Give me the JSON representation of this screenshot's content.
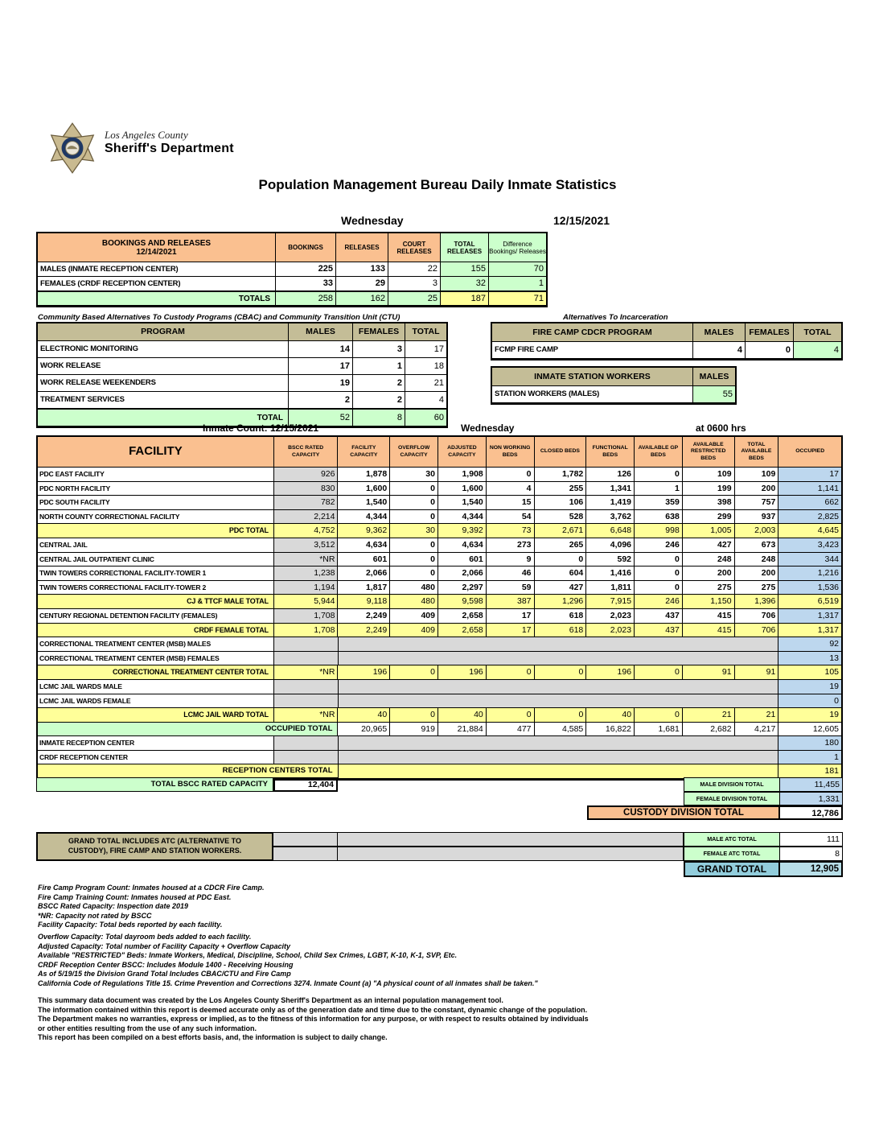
{
  "colors": {
    "peach": "#FAC090",
    "tan": "#C4BD97",
    "green": "#CCFFCC",
    "yellow": "#FFFF99",
    "blue": "#BDD7EE",
    "gray": "#D9D9D9",
    "gblue": "#92CDDC",
    "gbluel": "#B7DEE8",
    "navy": "#1F3864",
    "gold": "#C9BA90"
  },
  "logo": {
    "line1": "Los Angeles County",
    "line2": "Sheriff's Department"
  },
  "page": {
    "title": "Population Management Bureau Daily Inmate Statistics",
    "day": "Wednesday",
    "date": "12/15/2021"
  },
  "bookings": {
    "header": {
      "title1": "BOOKINGS AND RELEASES",
      "title2": "12/14/2021",
      "cols": [
        "BOOKINGS",
        "RELEASES",
        "COURT RELEASES",
        "TOTAL RELEASES",
        "Difference Bookings/ Releases"
      ]
    },
    "rows": [
      {
        "label": "MALES (INMATE RECEPTION CENTER)",
        "values": [
          "225",
          "133",
          "22",
          "155",
          "70"
        ]
      },
      {
        "label": "FEMALES (CRDF RECEPTION CENTER)",
        "values": [
          "33",
          "29",
          "3",
          "32",
          "1"
        ]
      }
    ],
    "totals": {
      "label": "TOTALS",
      "values": [
        "258",
        "162",
        "25",
        "187",
        "71"
      ]
    }
  },
  "cbac": {
    "title": "Community Based Alternatives To Custody Programs (CBAC) and Community Transition Unit (CTU)",
    "cols": [
      "PROGRAM",
      "MALES",
      "FEMALES",
      "TOTAL"
    ],
    "rows": [
      {
        "label": "ELECTRONIC MONITORING",
        "values": [
          "14",
          "3",
          "17"
        ]
      },
      {
        "label": "WORK RELEASE",
        "values": [
          "17",
          "1",
          "18"
        ]
      },
      {
        "label": "WORK RELEASE WEEKENDERS",
        "values": [
          "19",
          "2",
          "21"
        ]
      },
      {
        "label": "TREATMENT SERVICES",
        "values": [
          "2",
          "2",
          "4"
        ]
      }
    ],
    "total": {
      "label": "TOTAL",
      "values": [
        "52",
        "8",
        "60"
      ]
    }
  },
  "ati": {
    "title": "Alternatives To Incarceration",
    "fire_camp": {
      "cols": [
        "FIRE CAMP CDCR PROGRAM",
        "MALES",
        "FEMALES",
        "TOTAL"
      ],
      "row": {
        "label": "FCMP FIRE CAMP",
        "values": [
          "4",
          "0",
          "4"
        ]
      }
    },
    "station_workers": {
      "cols": [
        "INMATE STATION WORKERS",
        "MALES"
      ],
      "row": {
        "label": "STATION WORKERS (MALES)",
        "value": "55"
      }
    }
  },
  "count_table": {
    "caption": {
      "left": "Inmate Count: 12/15/2021",
      "center": "Wednesday",
      "right": "at 0600 hrs"
    },
    "columns": [
      "FACILITY",
      "BSCC RATED CAPACITY",
      "FACILITY CAPACITY",
      "OVERFLOW CAPACITY",
      "ADJUSTED CAPACITY",
      "NON WORKING BEDS",
      "CLOSED BEDS",
      "FUNCTIONAL BEDS",
      "AVAILABLE GP BEDS",
      "AVAILABLE RESTRICTED BEDS",
      "TOTAL AVAILABLE BEDS",
      "OCCUPIED"
    ],
    "rows": [
      {
        "kind": "f",
        "label": "PDC EAST FACILITY",
        "cells": [
          "926",
          "1,878",
          "30",
          "1,908",
          "0",
          "1,782",
          "126",
          "0",
          "109",
          "109",
          "17"
        ]
      },
      {
        "kind": "f",
        "label": "PDC NORTH FACILITY",
        "cells": [
          "830",
          "1,600",
          "0",
          "1,600",
          "4",
          "255",
          "1,341",
          "1",
          "199",
          "200",
          "1,141"
        ]
      },
      {
        "kind": "f",
        "label": "PDC SOUTH FACILITY",
        "cells": [
          "782",
          "1,540",
          "0",
          "1,540",
          "15",
          "106",
          "1,419",
          "359",
          "398",
          "757",
          "662"
        ]
      },
      {
        "kind": "f",
        "label": "NORTH COUNTY CORRECTIONAL FACILITY",
        "cells": [
          "2,214",
          "4,344",
          "0",
          "4,344",
          "54",
          "528",
          "3,762",
          "638",
          "299",
          "937",
          "2,825"
        ]
      },
      {
        "kind": "t",
        "label": "PDC TOTAL",
        "cells": [
          "4,752",
          "9,362",
          "30",
          "9,392",
          "73",
          "2,671",
          "6,648",
          "998",
          "1,005",
          "2,003",
          "4,645"
        ]
      },
      {
        "kind": "f",
        "label": "CENTRAL JAIL",
        "cells": [
          "3,512",
          "4,634",
          "0",
          "4,634",
          "273",
          "265",
          "4,096",
          "246",
          "427",
          "673",
          "3,423"
        ]
      },
      {
        "kind": "f",
        "label": "CENTRAL JAIL OUTPATIENT CLINIC",
        "cells": [
          "*NR",
          "601",
          "0",
          "601",
          "9",
          "0",
          "592",
          "0",
          "248",
          "248",
          "344"
        ]
      },
      {
        "kind": "f",
        "label": "TWIN TOWERS CORRECTIONAL FACILITY-TOWER 1",
        "cells": [
          "1,238",
          "2,066",
          "0",
          "2,066",
          "46",
          "604",
          "1,416",
          "0",
          "200",
          "200",
          "1,216"
        ]
      },
      {
        "kind": "f",
        "label": "TWIN TOWERS CORRECTIONAL FACILITY-TOWER 2",
        "cells": [
          "1,194",
          "1,817",
          "480",
          "2,297",
          "59",
          "427",
          "1,811",
          "0",
          "275",
          "275",
          "1,536"
        ]
      },
      {
        "kind": "t",
        "label": "CJ & TTCF MALE TOTAL",
        "cells": [
          "5,944",
          "9,118",
          "480",
          "9,598",
          "387",
          "1,296",
          "7,915",
          "246",
          "1,150",
          "1,396",
          "6,519"
        ]
      },
      {
        "kind": "f",
        "label": "CENTURY REGIONAL DETENTION FACILITY (FEMALES)",
        "cells": [
          "1,708",
          "2,249",
          "409",
          "2,658",
          "17",
          "618",
          "2,023",
          "437",
          "415",
          "706",
          "1,317"
        ]
      },
      {
        "kind": "t",
        "label": "CRDF FEMALE TOTAL",
        "cells": [
          "1,708",
          "2,249",
          "409",
          "2,658",
          "17",
          "618",
          "2,023",
          "437",
          "415",
          "706",
          "1,317"
        ]
      },
      {
        "kind": "m",
        "label": "CORRECTIONAL TREATMENT CENTER (MSB) MALES",
        "bscc": "",
        "occupied": "92"
      },
      {
        "kind": "m",
        "label": "CORRECTIONAL TREATMENT CENTER (MSB) FEMALES",
        "bscc": "",
        "occupied": "13"
      },
      {
        "kind": "t",
        "label": "CORRECTIONAL TREATMENT CENTER  TOTAL",
        "cells": [
          "*NR",
          "196",
          "0",
          "196",
          "0",
          "0",
          "196",
          "0",
          "91",
          "91",
          "105"
        ]
      },
      {
        "kind": "m",
        "label": "LCMC JAIL WARDS MALE",
        "bscc": "",
        "occupied": "19"
      },
      {
        "kind": "m",
        "label": "LCMC JAIL WARDS FEMALE",
        "bscc": "",
        "occupied": "0"
      },
      {
        "kind": "t",
        "label": "LCMC JAIL WARD TOTAL",
        "cells": [
          "*NR",
          "40",
          "0",
          "40",
          "0",
          "0",
          "40",
          "0",
          "21",
          "21",
          "19"
        ]
      },
      {
        "kind": "g",
        "label": "OCCUPIED TOTAL",
        "cells": [
          "20,965",
          "919",
          "21,884",
          "477",
          "4,585",
          "16,822",
          "1,681",
          "2,682",
          "4,217",
          "12,605"
        ]
      },
      {
        "kind": "m",
        "label": "INMATE RECEPTION CENTER",
        "bscc": "",
        "occupied": "180"
      },
      {
        "kind": "m",
        "label": "CRDF RECEPTION CENTER",
        "bscc": "",
        "occupied": "1"
      },
      {
        "kind": "rt",
        "label": "RECEPTION CENTERS TOTAL",
        "bscc": "",
        "occupied": "181"
      }
    ],
    "bscc_total": {
      "label": "TOTAL BSCC RATED CAPACITY",
      "value": "12,404"
    },
    "division_totals": [
      {
        "label": "MALE DIVISION TOTAL",
        "value": "11,455"
      },
      {
        "label": "FEMALE DIVISION TOTAL",
        "value": "1,331"
      }
    ],
    "custody_total": {
      "label": "CUSTODY DIVISION TOTAL",
      "value": "12,786"
    }
  },
  "grand": {
    "note": "GRAND TOTAL INCLUDES ATC (ALTERNATIVE TO CUSTODY), FIRE CAMP AND STATION WORKERS.",
    "rows": [
      {
        "label": "MALE ATC TOTAL",
        "value": "111"
      },
      {
        "label": "FEMALE ATC TOTAL",
        "value": "8"
      }
    ],
    "total": {
      "label": "GRAND TOTAL",
      "value": "12,905"
    }
  },
  "footnotes": [
    "Fire Camp Program Count: Inmates housed at a CDCR Fire Camp.",
    "Fire Camp Training Count: Inmates housed at PDC East.",
    "BSCC Rated Capacity: Inspection date 2019",
    "*NR: Capacity not rated by BSCC",
    "Facility Capacity: Total beds reported by each facility.",
    "Overflow Capacity: Total dayroom beds added to each facility.",
    "Adjusted Capacity: Total number of Facility Capacity + Overflow Capacity",
    "Available \"RESTRICTED\" Beds: Inmate Workers, Medical, Discipline, School, Child Sex Crimes,  LGBT, K-10, K-1, SVP, Etc.",
    "CRDF Reception Center BSCC: Includes Module 1400 - Receiving Housing",
    "As of 5/19/15 the Division Grand Total Includes CBAC/CTU and Fire Camp",
    "California Code of Regulations Title 15. Crime Prevention and Corrections 3274. Inmate Count (a) \"A physical count of all inmates shall be taken.\""
  ],
  "disclaimer": [
    "This summary data document was created by the Los Angeles County Sheriff's Department as an internal population management tool.",
    "The information contained within this report is deemed accurate only as of the generation date and time due to the constant, dynamic change of the population.",
    "The Department makes no warranties, express or implied, as to the fitness of this information for any purpose, or with respect to results obtained by individuals",
    "or other entities resulting from the use of any such information.",
    "This report has been compiled on a best efforts basis, and, the information is subject to daily change."
  ]
}
